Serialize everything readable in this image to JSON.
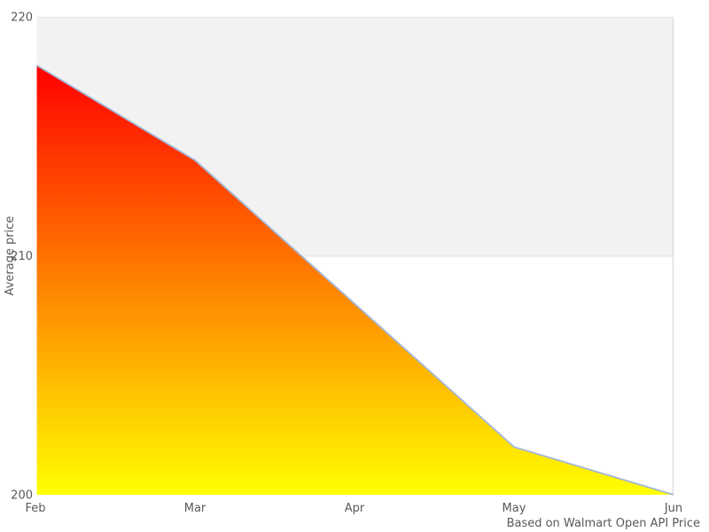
{
  "caption": "Based on Walmart Open API Price",
  "chart_data": {
    "type": "area",
    "title": "",
    "xlabel": "",
    "ylabel": "Average price",
    "categories": [
      "Feb",
      "Mar",
      "Apr",
      "May",
      "Jun"
    ],
    "series": [
      {
        "name": "Average price",
        "values": [
          218,
          214,
          208,
          202,
          200
        ]
      }
    ],
    "ylim": [
      200,
      220
    ],
    "yticks": [
      200,
      210,
      220
    ],
    "legend": "none",
    "grid": "band-edges-only",
    "plot_band": {
      "from": 210,
      "to": 220,
      "color": "#f2f2f2"
    },
    "colors": {
      "line": "#a2b8d8",
      "area_gradient_top": "#ff0000",
      "area_gradient_bottom": "#ffff00",
      "band_border": "#e3e3e3",
      "plot_border_right": "#d9d9d9",
      "axis_gap": "#ffffff",
      "text": "#595959",
      "background": "#ffffff"
    }
  }
}
